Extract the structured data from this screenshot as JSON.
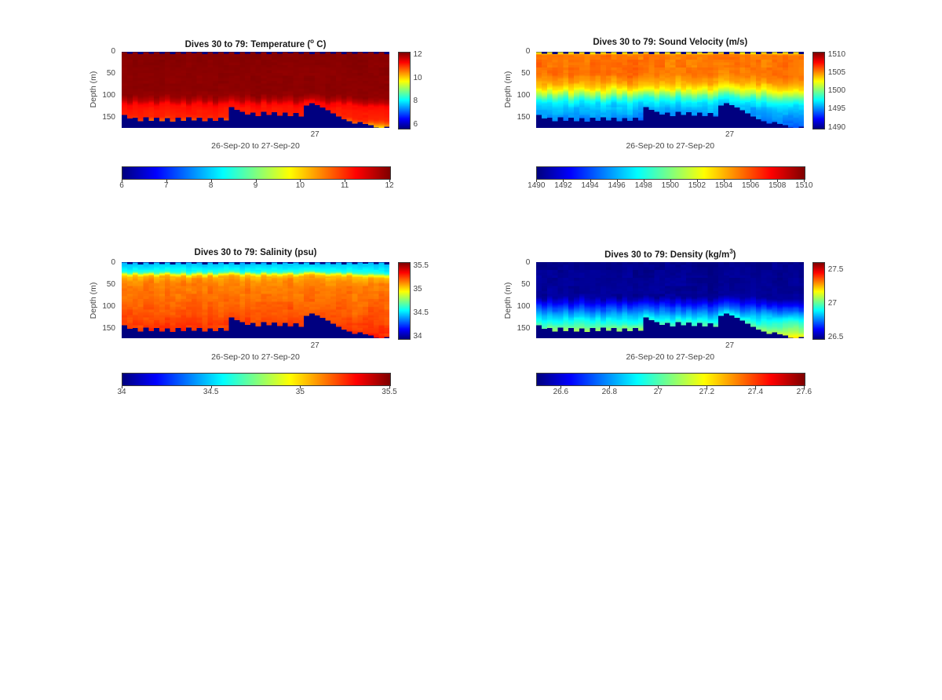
{
  "figure": {
    "background": "#ffffff"
  },
  "shared": {
    "ylabel": "Depth (m)",
    "xlabel": "26-Sep-20 to 27-Sep-20",
    "x_tick_label": "27",
    "x_tick_fraction": 0.722,
    "depth_ticks": [
      0,
      50,
      100,
      150
    ],
    "depth_max_m": 173,
    "n_profiles": 50,
    "max_depth_m": [
      144,
      152,
      150,
      158,
      149,
      157,
      150,
      158,
      151,
      159,
      150,
      157,
      149,
      156,
      150,
      158,
      151,
      157,
      150,
      156,
      126,
      132,
      136,
      143,
      138,
      146,
      136,
      144,
      137,
      145,
      138,
      146,
      139,
      147,
      122,
      117,
      121,
      127,
      133,
      140,
      147,
      153,
      158,
      163,
      160,
      164,
      167,
      172,
      174,
      170
    ],
    "surface_gap_m": [
      0.5,
      4.5,
      0.5,
      5,
      0.5,
      4.5,
      1,
      4.5,
      0.5,
      5,
      0.5,
      4.5,
      0.5,
      4,
      0.5,
      5,
      0.5,
      4.5,
      1,
      4.5,
      0.5,
      5,
      0.5,
      4.5,
      1,
      4.5,
      0.5,
      5,
      0.5,
      4.5,
      0.5,
      4,
      1,
      4.5,
      0.5,
      5,
      0.5,
      4.5,
      1,
      4.5,
      0.5,
      5,
      0.5,
      4.5,
      1,
      4,
      0.5,
      4.5,
      0.5,
      5
    ],
    "pycnocline_shift_m": [
      2,
      -3,
      4,
      -2,
      0,
      3,
      -4,
      2,
      5,
      -1,
      -3,
      2,
      -5,
      1,
      4,
      -2,
      3,
      -4,
      1,
      2,
      6,
      3,
      -2,
      4,
      1,
      -3,
      5,
      -2,
      3,
      -1,
      2,
      4,
      -3,
      1,
      6,
      8,
      5,
      3,
      -2,
      1,
      3,
      -2,
      2,
      -3,
      -4,
      -6,
      -3,
      -5,
      -4,
      -6
    ]
  },
  "panels": [
    {
      "id": "temperature",
      "title_prefix": "Dives 30 to 79: Temperature (",
      "title_sup": "o",
      "title_suffix": " C)",
      "clim": [
        5.7,
        12.3
      ],
      "vbar_ticks": [
        {
          "v": 12,
          "label": "12"
        },
        {
          "v": 10,
          "label": "10"
        },
        {
          "v": 8,
          "label": "8"
        },
        {
          "v": 6,
          "label": "6"
        }
      ],
      "hbar_range": [
        6,
        12
      ],
      "hbar_ticks": [
        {
          "v": 6,
          "label": "6"
        },
        {
          "v": 7,
          "label": "7"
        },
        {
          "v": 8,
          "label": "8"
        },
        {
          "v": 9,
          "label": "9"
        },
        {
          "v": 10,
          "label": "10"
        },
        {
          "v": 11,
          "label": "11"
        },
        {
          "v": 12,
          "label": "12"
        }
      ],
      "profile": [
        [
          0,
          12.26
        ],
        [
          100,
          12.2
        ],
        [
          112,
          11.9
        ],
        [
          120,
          11.45
        ],
        [
          130,
          11.35
        ],
        [
          150,
          11.25
        ],
        [
          157,
          10.95
        ],
        [
          163,
          10.5
        ],
        [
          168,
          10.1
        ],
        [
          173,
          9.8
        ]
      ],
      "noise_amp": 0.025,
      "streak_amp": 0.01,
      "blob_amp": 0.03,
      "boundary_boost": 0,
      "boundary_width": 15,
      "deep_anomaly": 0,
      "seed": 1
    },
    {
      "id": "sound-velocity",
      "title_prefix": "Dives 30 to 79: Sound Velocity (m/s)",
      "title_sup": "",
      "title_suffix": "",
      "clim": [
        1489.9,
        1510.8
      ],
      "vbar_ticks": [
        {
          "v": 1510,
          "label": "1510"
        },
        {
          "v": 1505,
          "label": "1505"
        },
        {
          "v": 1500,
          "label": "1500"
        },
        {
          "v": 1495,
          "label": "1495"
        },
        {
          "v": 1490,
          "label": "1490"
        }
      ],
      "hbar_range": [
        1490,
        1510
      ],
      "hbar_ticks": [
        {
          "v": 1490,
          "label": "1490"
        },
        {
          "v": 1492,
          "label": "1492"
        },
        {
          "v": 1494,
          "label": "1494"
        },
        {
          "v": 1496,
          "label": "1496"
        },
        {
          "v": 1498,
          "label": "1498"
        },
        {
          "v": 1500,
          "label": "1500"
        },
        {
          "v": 1502,
          "label": "1502"
        },
        {
          "v": 1504,
          "label": "1504"
        },
        {
          "v": 1506,
          "label": "1506"
        },
        {
          "v": 1508,
          "label": "1508"
        },
        {
          "v": 1510,
          "label": "1510"
        }
      ],
      "profile": [
        [
          0,
          1502.4
        ],
        [
          8,
          1505.8
        ],
        [
          52,
          1505.8
        ],
        [
          70,
          1504.9
        ],
        [
          84,
          1503.4
        ],
        [
          96,
          1501.2
        ],
        [
          106,
          1499.0
        ],
        [
          116,
          1497.4
        ],
        [
          130,
          1496.3
        ],
        [
          150,
          1495.4
        ],
        [
          173,
          1494.2
        ]
      ],
      "noise_amp": 0.2,
      "streak_amp": 0.2,
      "blob_amp": 0.28,
      "boundary_boost": 0,
      "boundary_width": 15,
      "deep_anomaly": 0,
      "seed": 2
    },
    {
      "id": "salinity",
      "title_prefix": "Dives 30 to 79: Salinity (psu)",
      "title_sup": "",
      "title_suffix": "",
      "clim": [
        33.95,
        35.57
      ],
      "vbar_ticks": [
        {
          "v": 35.5,
          "label": "35.5"
        },
        {
          "v": 35,
          "label": "35"
        },
        {
          "v": 34.5,
          "label": "34.5"
        },
        {
          "v": 34,
          "label": "34"
        }
      ],
      "hbar_range": [
        34,
        35.5
      ],
      "hbar_ticks": [
        {
          "v": 34,
          "label": "34"
        },
        {
          "v": 34.5,
          "label": "34.5"
        },
        {
          "v": 35,
          "label": "35"
        },
        {
          "v": 35.5,
          "label": "35.5"
        }
      ],
      "profile": [
        [
          0,
          34.4
        ],
        [
          4,
          34.46
        ],
        [
          12,
          34.51
        ],
        [
          20,
          34.57
        ],
        [
          24,
          34.66
        ],
        [
          28,
          34.92
        ],
        [
          33,
          35.07
        ],
        [
          45,
          35.15
        ],
        [
          80,
          35.19
        ],
        [
          120,
          35.23
        ],
        [
          150,
          35.28
        ],
        [
          173,
          35.34
        ]
      ],
      "noise_amp": 0.015,
      "streak_amp": 0.012,
      "blob_amp": 0.02,
      "boundary_boost": 0,
      "boundary_width": 15,
      "deep_anomaly": 0,
      "seed": 3
    },
    {
      "id": "density",
      "title_prefix": "Dives 30 to 79: Density (kg/m",
      "title_sup": "3",
      "title_suffix": ")",
      "clim": [
        26.48,
        27.61
      ],
      "vbar_ticks": [
        {
          "v": 27.5,
          "label": "27.5"
        },
        {
          "v": 27,
          "label": "27"
        },
        {
          "v": 26.5,
          "label": "26.5"
        }
      ],
      "hbar_range": [
        26.5,
        27.6
      ],
      "hbar_ticks": [
        {
          "v": 26.6,
          "label": "26.6"
        },
        {
          "v": 26.8,
          "label": "26.8"
        },
        {
          "v": 27,
          "label": "27"
        },
        {
          "v": 27.2,
          "label": "27.2"
        },
        {
          "v": 27.4,
          "label": "27.4"
        },
        {
          "v": 27.6,
          "label": "27.6"
        }
      ],
      "profile": [
        [
          0,
          26.49
        ],
        [
          80,
          26.51
        ],
        [
          92,
          26.6
        ],
        [
          105,
          26.7
        ],
        [
          118,
          26.8
        ],
        [
          132,
          26.89
        ],
        [
          148,
          26.96
        ],
        [
          162,
          27.02
        ],
        [
          173,
          27.08
        ]
      ],
      "noise_amp": 0.008,
      "streak_amp": 0.006,
      "blob_amp": 0.012,
      "boundary_boost": 0.05,
      "boundary_width": 10,
      "deep_anomaly": 0.1,
      "seed": 4
    }
  ]
}
